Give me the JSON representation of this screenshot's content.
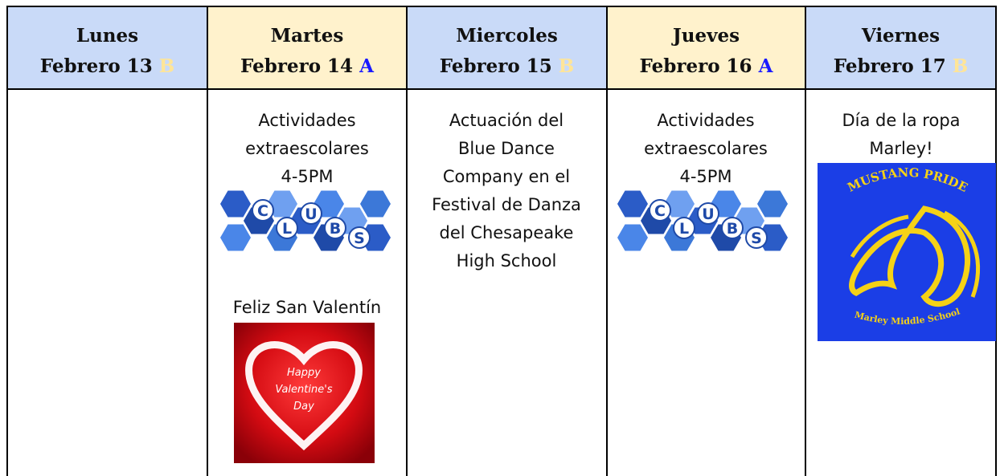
{
  "header": [
    {
      "day": "Lunes",
      "date": "Febrero 13",
      "letter": "B",
      "letter_color": "#ffe599",
      "background": "#c9daf8"
    },
    {
      "day": "Martes",
      "date": "Febrero 14",
      "letter": "A",
      "letter_color": "#1a1aff",
      "background": "#fff2cc"
    },
    {
      "day": "Miercoles",
      "date": "Febrero 15",
      "letter": "B",
      "letter_color": "#ffe599",
      "background": "#c9daf8"
    },
    {
      "day": "Jueves",
      "date": "Febrero 16",
      "letter": "A",
      "letter_color": "#1a1aff",
      "background": "#fff2cc"
    },
    {
      "day": "Viernes",
      "date": "Febrero 17",
      "letter": "B",
      "letter_color": "#ffe599",
      "background": "#c9daf8"
    }
  ],
  "body": {
    "martes": {
      "activity": [
        "Actividades",
        "extraescolares",
        "4-5PM"
      ],
      "logo": [
        "C",
        "L",
        "U",
        "B",
        "S"
      ],
      "greeting": "Feliz San Valentín",
      "card": [
        "Happy",
        "Valentine's",
        "Day"
      ]
    },
    "miercoles": {
      "event": [
        "Actuación del",
        "Blue Dance",
        "Company en el",
        "Festival de Danza",
        "del Chesapeake",
        "High School"
      ]
    },
    "jueves": {
      "activity": [
        "Actividades",
        "extraescolares",
        "4-5PM"
      ],
      "logo": [
        "C",
        "L",
        "U",
        "B",
        "S"
      ]
    },
    "viernes": {
      "event": [
        "Día de la ropa",
        "Marley!"
      ],
      "badge_top": "MUSTANG PRIDE",
      "badge_bottom": "Marley Middle School"
    }
  }
}
